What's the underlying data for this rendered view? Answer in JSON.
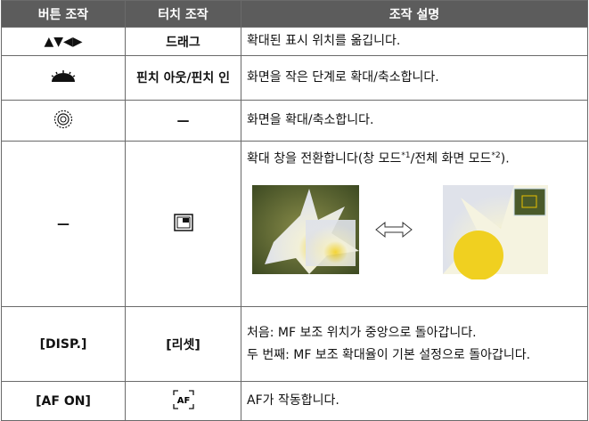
{
  "table": {
    "header": [
      "버튼 조작",
      "터치 조작",
      "조작 설명"
    ],
    "rows": [
      [
        "▲▼◀▶",
        "드래그",
        "확대된 표시 위치를 옮깁니다."
      ],
      [
        null,
        "핀치 아웃/핀치 인",
        "화면을 작은 단계로 확대/축소합니다."
      ],
      [
        null,
        "—",
        "화면을 확대/축소합니다."
      ],
      [
        "—",
        null,
        {
          "parts": [
            "확대 창을 전환합니다(창 모드",
            "*1",
            "/전체 화면 모드",
            "*2",
            ")."
          ]
        }
      ],
      [
        "[DISP.]",
        "[리셋]",
        {
          "lines": [
            "처음: MF 보조 위치가 중앙으로 돌아갑니다.",
            "두 번째: MF 보조 확대율이 기본 설정으로 돌아갑니다."
          ]
        }
      ],
      [
        "[AF ON]",
        {
          "icon": "AF"
        },
        "AF가 작동합니다."
      ]
    ]
  }
}
